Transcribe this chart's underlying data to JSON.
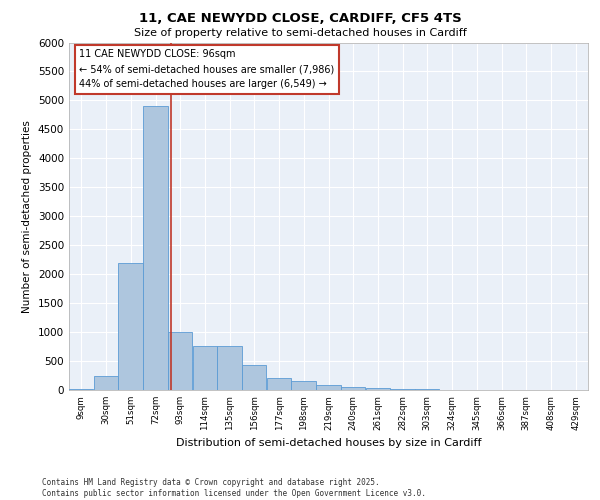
{
  "title_line1": "11, CAE NEWYDD CLOSE, CARDIFF, CF5 4TS",
  "title_line2": "Size of property relative to semi-detached houses in Cardiff",
  "xlabel": "Distribution of semi-detached houses by size in Cardiff",
  "ylabel": "Number of semi-detached properties",
  "bins": [
    9,
    30,
    51,
    72,
    93,
    114,
    135,
    156,
    177,
    198,
    219,
    240,
    261,
    282,
    303,
    324,
    345,
    366,
    387,
    408,
    429
  ],
  "bin_labels": [
    "9sqm",
    "30sqm",
    "51sqm",
    "72sqm",
    "93sqm",
    "114sqm",
    "135sqm",
    "156sqm",
    "177sqm",
    "198sqm",
    "219sqm",
    "240sqm",
    "261sqm",
    "282sqm",
    "303sqm",
    "324sqm",
    "345sqm",
    "366sqm",
    "387sqm",
    "408sqm",
    "429sqm"
  ],
  "values": [
    20,
    250,
    2200,
    4900,
    1000,
    760,
    760,
    440,
    200,
    150,
    90,
    55,
    40,
    25,
    10,
    5,
    3,
    2,
    1,
    0,
    0
  ],
  "bar_color": "#aec6de",
  "bar_edge_color": "#5b9bd5",
  "property_size": 96,
  "annotation_title": "11 CAE NEWYDD CLOSE: 96sqm",
  "annotation_line1": "← 54% of semi-detached houses are smaller (7,986)",
  "annotation_line2": "44% of semi-detached houses are larger (6,549) →",
  "vline_color": "#c0392b",
  "annotation_box_color": "#c0392b",
  "ylim": [
    0,
    6000
  ],
  "yticks": [
    0,
    500,
    1000,
    1500,
    2000,
    2500,
    3000,
    3500,
    4000,
    4500,
    5000,
    5500,
    6000
  ],
  "background_color": "#eaf0f8",
  "grid_color": "#ffffff",
  "footer_line1": "Contains HM Land Registry data © Crown copyright and database right 2025.",
  "footer_line2": "Contains public sector information licensed under the Open Government Licence v3.0."
}
